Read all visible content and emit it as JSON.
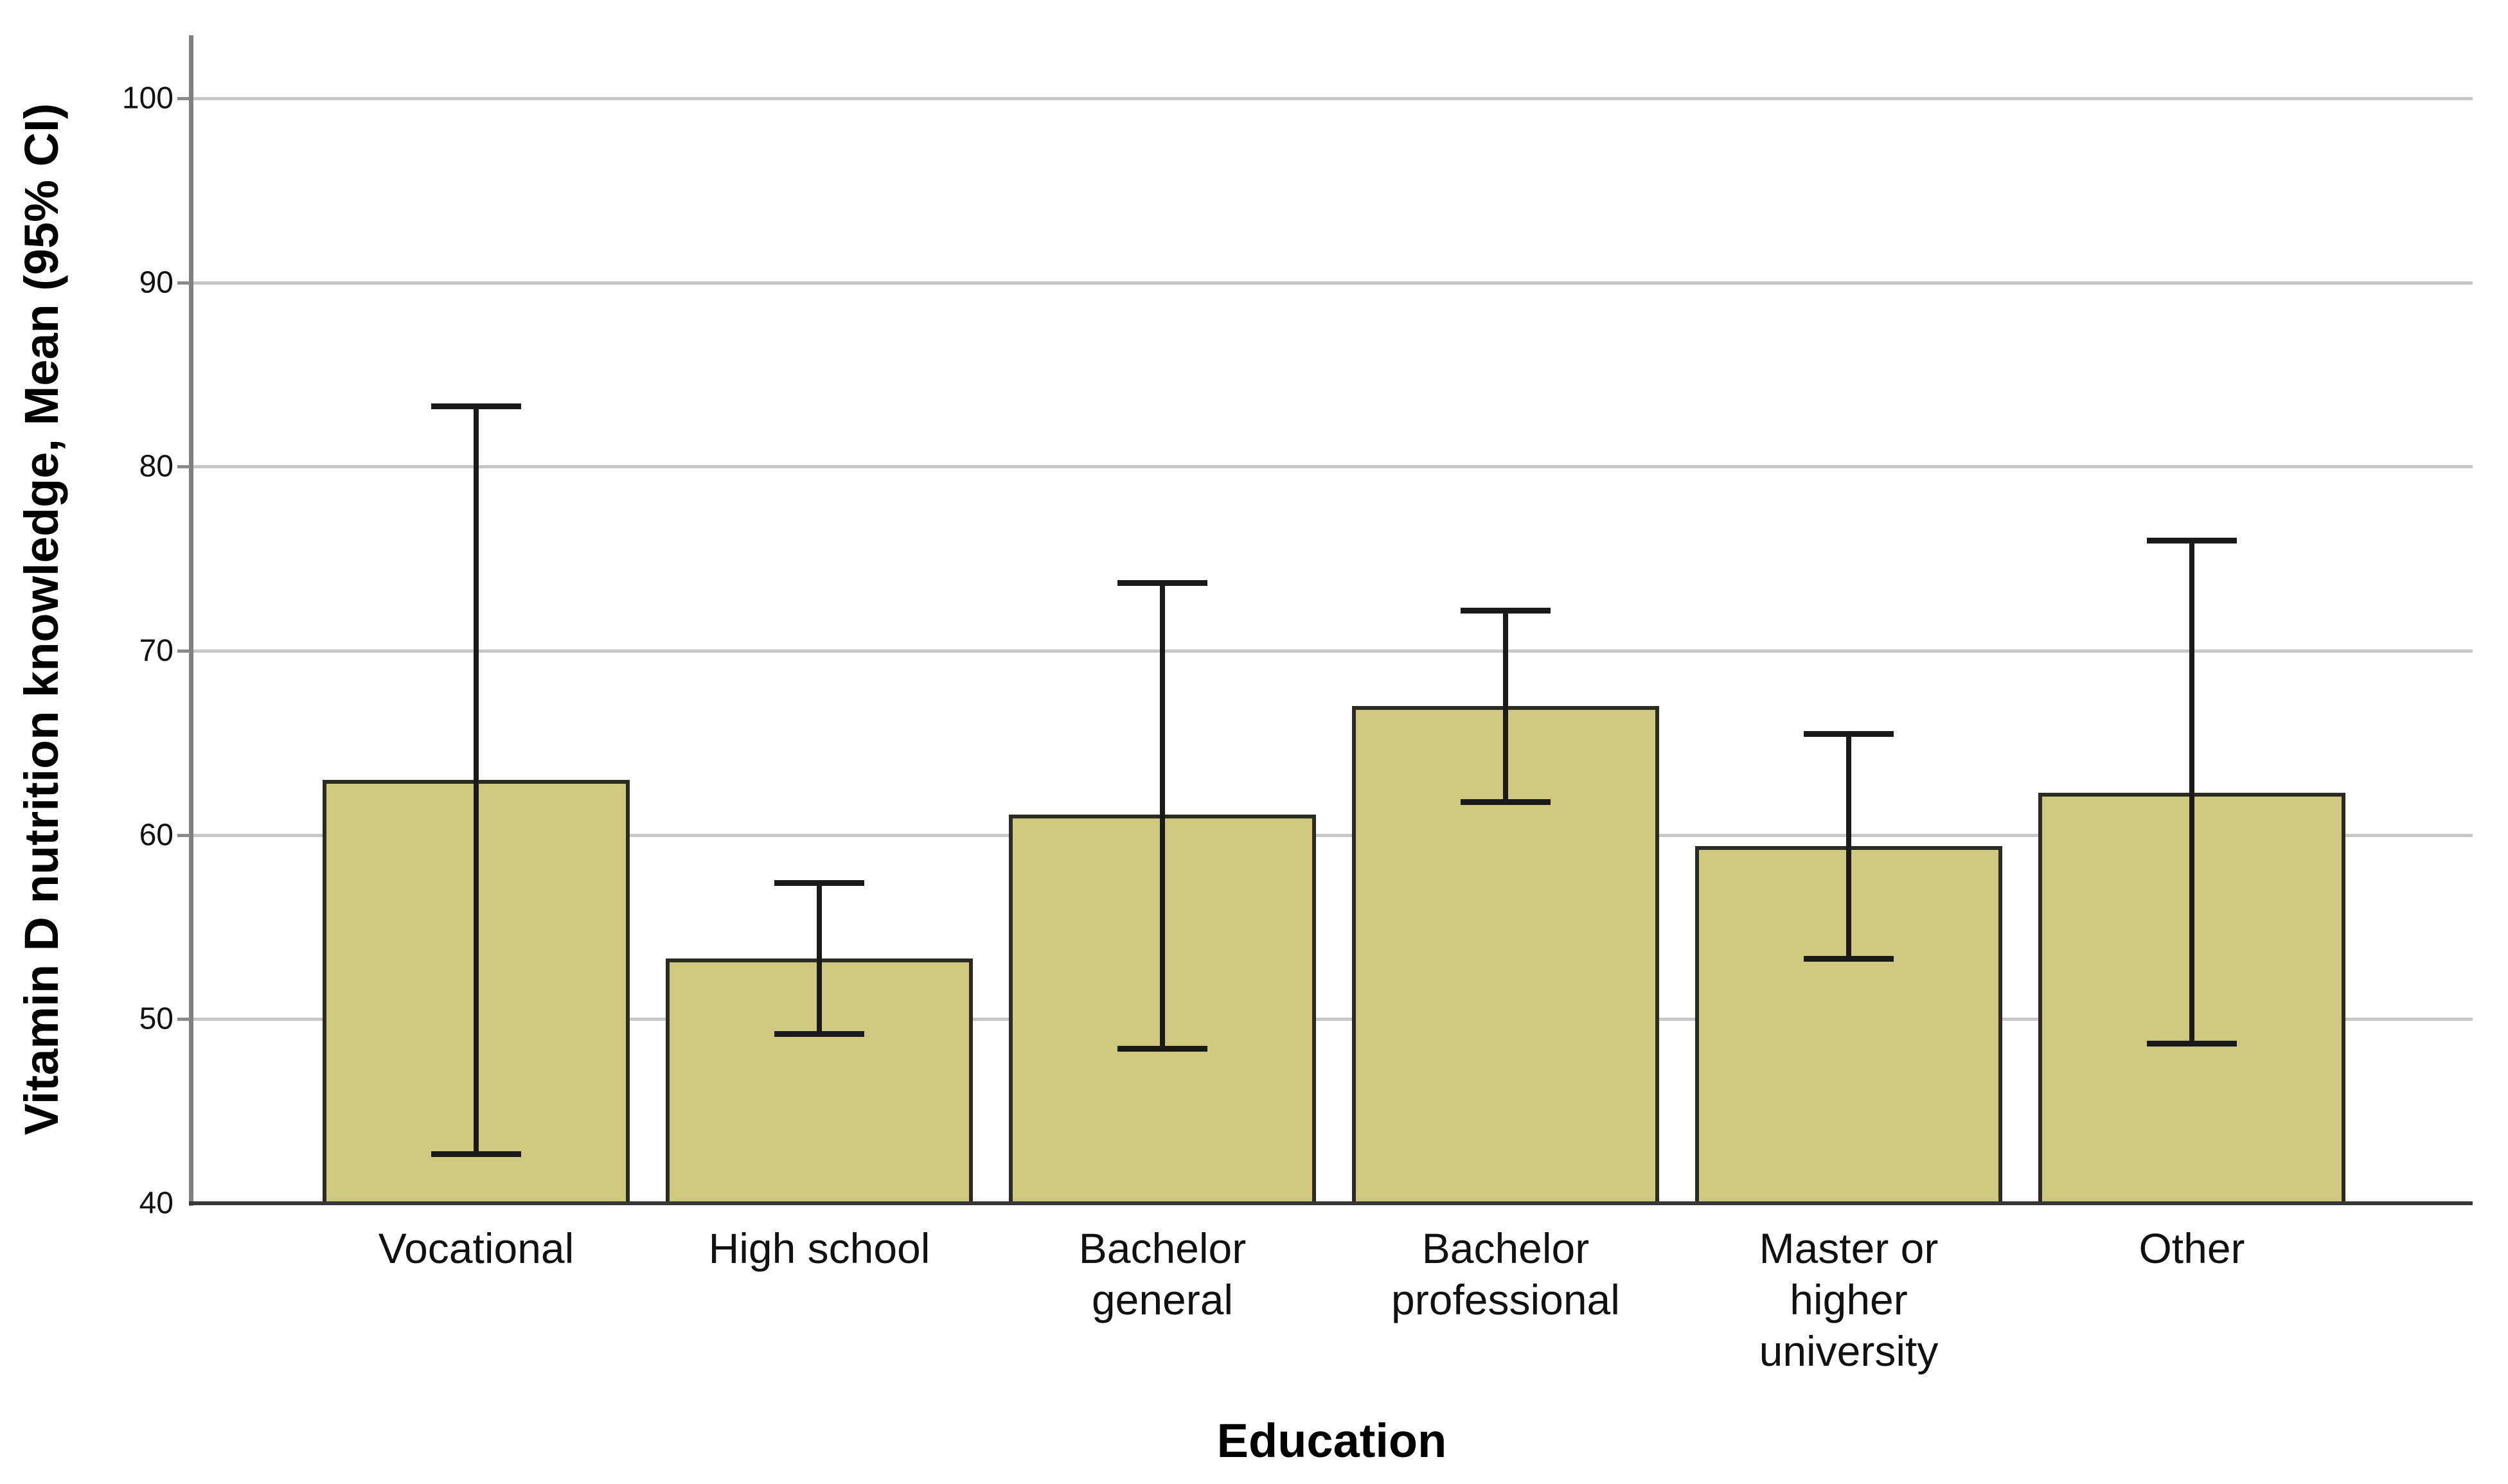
{
  "figure": {
    "background": "#ffffff",
    "y_axis_title": "Vitamin D nutrition knowledge, Mean (95% CI)",
    "x_axis_title": "Education"
  },
  "chart_data": {
    "type": "bar",
    "title": "",
    "xlabel": "Education",
    "ylabel": "Vitamin D nutrition knowledge, Mean (95% CI)",
    "ylim": [
      40,
      100
    ],
    "yticks": [
      40,
      50,
      60,
      70,
      80,
      90,
      100
    ],
    "grid": "horizontal gridlines at each y tick, light gray, no top/right frame",
    "legend": "none",
    "bar_color": "#cec97f",
    "bar_border_color": "#2b2b23",
    "error_bar_color": "#1a1a1a",
    "categories": [
      "Vocational",
      "High school",
      "Bachelor general",
      "Bachelor professional",
      "Master or higher university",
      "Other"
    ],
    "category_label_lines": [
      [
        "Vocational"
      ],
      [
        "High school"
      ],
      [
        "Bachelor",
        "general"
      ],
      [
        "Bachelor",
        "professional"
      ],
      [
        "Master or",
        "higher",
        "university"
      ],
      [
        "Other"
      ]
    ],
    "series": [
      {
        "name": "Mean",
        "values": [
          63.0,
          53.3,
          61.1,
          67.0,
          59.4,
          62.3
        ]
      }
    ],
    "error_bars": {
      "kind": "95% CI",
      "low": [
        42.7,
        49.2,
        48.4,
        61.8,
        53.3,
        48.7
      ],
      "high": [
        83.3,
        57.4,
        73.7,
        72.2,
        65.5,
        76.0
      ]
    }
  }
}
